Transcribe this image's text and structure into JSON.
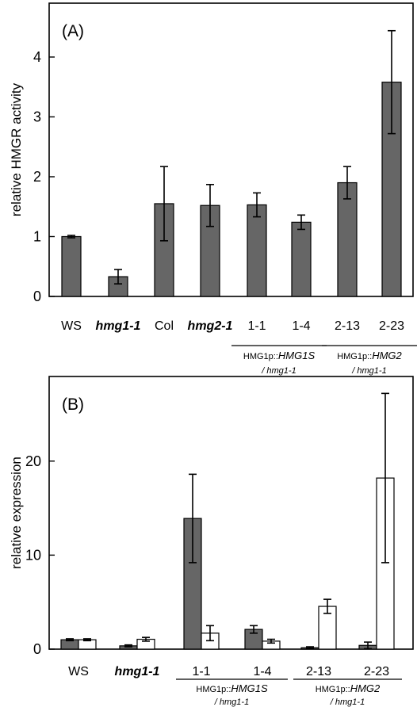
{
  "colors": {
    "filled": "#666666",
    "open": "#ffffff",
    "stroke": "#000000"
  },
  "chart_data": [
    {
      "type": "bar",
      "panel_label": "(A)",
      "ylabel": "relative HMGR activity",
      "ylim": [
        0,
        4.9
      ],
      "yticks": [
        0,
        1,
        2,
        3,
        4
      ],
      "categories": [
        {
          "label": "WS",
          "italic": false
        },
        {
          "label": "hmg1-1",
          "italic": true
        },
        {
          "label": "Col",
          "italic": false
        },
        {
          "label": "hmg2-1",
          "italic": true
        },
        {
          "label": "1-1",
          "italic": false
        },
        {
          "label": "1-4",
          "italic": false
        },
        {
          "label": "2-13",
          "italic": false
        },
        {
          "label": "2-23",
          "italic": false
        }
      ],
      "series": [
        {
          "values": [
            1.0,
            0.33,
            1.55,
            1.52,
            1.53,
            1.24,
            1.9,
            3.58
          ],
          "errors": [
            0.02,
            0.12,
            0.62,
            0.35,
            0.2,
            0.12,
            0.27,
            0.86
          ]
        }
      ],
      "groups": [
        {
          "line1_prefix": "HMG1p::",
          "line1_italic": "HMG1S",
          "line2": "/ hmg1-1",
          "from": 4,
          "to": 5
        },
        {
          "line1_prefix": "HMG1p::",
          "line1_italic": "HMG2",
          "line2": "/ hmg1-1",
          "from": 6,
          "to": 7
        }
      ]
    },
    {
      "type": "bar",
      "panel_label": "(B)",
      "ylabel": "relative expression",
      "ylim": [
        0,
        29
      ],
      "yticks": [
        0,
        10,
        20
      ],
      "categories": [
        {
          "label": "WS",
          "italic": false
        },
        {
          "label": "hmg1-1",
          "italic": true
        },
        {
          "label": "1-1",
          "italic": false
        },
        {
          "label": "1-4",
          "italic": false
        },
        {
          "label": "2-13",
          "italic": false
        },
        {
          "label": "2-23",
          "italic": false
        }
      ],
      "series": [
        {
          "fill": "filled",
          "values": [
            1.0,
            0.35,
            13.9,
            2.1,
            0.15,
            0.4
          ],
          "errors": [
            0.1,
            0.1,
            4.7,
            0.4,
            0.1,
            0.35
          ]
        },
        {
          "fill": "open",
          "values": [
            1.0,
            1.05,
            1.7,
            0.85,
            4.55,
            18.2
          ],
          "errors": [
            0.1,
            0.2,
            0.8,
            0.2,
            0.75,
            9.0
          ]
        }
      ],
      "groups": [
        {
          "line1_prefix": "HMG1p::",
          "line1_italic": "HMG1S",
          "line2": "/ hmg1-1",
          "from": 2,
          "to": 3
        },
        {
          "line1_prefix": "HMG1p::",
          "line1_italic": "HMG2",
          "line2": "/ hmg1-1",
          "from": 4,
          "to": 5
        }
      ]
    }
  ]
}
